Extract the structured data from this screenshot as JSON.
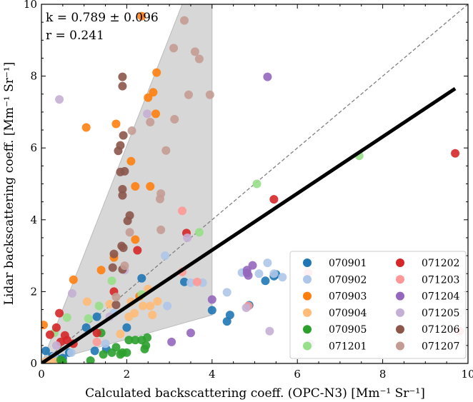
{
  "chart_data": {
    "type": "scatter",
    "xlabel": "Calculated backscattering coeff. (OPC-N3) [Mm⁻¹ Sr⁻¹]",
    "ylabel": "Lidar backscattering coeff. [Mm⁻¹ Sr⁻¹]",
    "xlim": [
      0,
      10
    ],
    "ylim": [
      0,
      10
    ],
    "xticks": [
      0,
      2,
      4,
      6,
      8,
      10
    ],
    "yticks": [
      0,
      2,
      4,
      6,
      8,
      10
    ],
    "grid": false,
    "legend_placement": "lower-right",
    "legend_columns": 2,
    "annotations": [
      "k = 0.789 ± 0.096",
      "r = 0.241"
    ],
    "fit_line": {
      "slope": 0.789,
      "intercept": 0,
      "x_range": [
        0,
        9.7
      ],
      "color": "#000000"
    },
    "identity_line": {
      "slope": 1,
      "intercept": 0,
      "style": "dashed",
      "color": "#808080"
    },
    "shaded_region": {
      "vertices": [
        [
          0,
          0
        ],
        [
          3.3,
          10
        ],
        [
          4,
          10
        ],
        [
          4,
          1.35
        ]
      ],
      "color": "#d3d3d3"
    },
    "series": [
      {
        "name": "070901",
        "color": "#1f77b4",
        "points": [
          [
            0.1,
            0.35
          ],
          [
            0.35,
            0.15
          ],
          [
            0.5,
            0.15
          ],
          [
            1.05,
            1.0
          ],
          [
            1.25,
            0.35
          ],
          [
            1.52,
            0.4
          ],
          [
            2.0,
            1.0
          ],
          [
            2.35,
            2.37
          ],
          [
            3.35,
            2.27
          ],
          [
            4.0,
            1.48
          ],
          [
            4.35,
            1.17
          ],
          [
            4.42,
            1.35
          ],
          [
            4.87,
            1.62
          ],
          [
            5.25,
            2.3
          ],
          [
            5.45,
            2.43
          ],
          [
            5.5,
            2.48
          ],
          [
            0.65,
            0.3
          ],
          [
            0.25,
            0.2
          ],
          [
            1.3,
            1.3
          ]
        ]
      },
      {
        "name": "070902",
        "color": "#aec7e8",
        "points": [
          [
            0.15,
            0.1
          ],
          [
            0.3,
            0.2
          ],
          [
            1.5,
            0.55
          ],
          [
            2.9,
            3.0
          ],
          [
            2.95,
            1.6
          ],
          [
            3.5,
            2.25
          ],
          [
            3.78,
            2.25
          ],
          [
            4.35,
            1.98
          ],
          [
            4.7,
            2.53
          ],
          [
            5.1,
            2.5
          ],
          [
            5.3,
            2.8
          ],
          [
            5.45,
            2.5
          ],
          [
            5.65,
            2.4
          ],
          [
            0.7,
            0.3
          ],
          [
            1.7,
            1.4
          ]
        ]
      },
      {
        "name": "070903",
        "color": "#ff7f0e",
        "points": [
          [
            0.05,
            1.07
          ],
          [
            0.75,
            2.33
          ],
          [
            1.05,
            6.57
          ],
          [
            1.75,
            6.67
          ],
          [
            2.35,
            9.67
          ],
          [
            2.5,
            7.4
          ],
          [
            2.62,
            7.55
          ],
          [
            2.7,
            8.1
          ],
          [
            2.68,
            6.95
          ],
          [
            2.1,
            5.63
          ],
          [
            2.2,
            4.93
          ],
          [
            2.55,
            4.93
          ],
          [
            2.2,
            3.45
          ],
          [
            1.4,
            2.6
          ],
          [
            2.3,
            1.87
          ],
          [
            1.7,
            2.95
          ]
        ]
      },
      {
        "name": "070904",
        "color": "#ffbb78",
        "points": [
          [
            0.1,
            0.05
          ],
          [
            0.2,
            0.1
          ],
          [
            0.35,
            0.05
          ],
          [
            1.07,
            1.72
          ],
          [
            1.6,
            1.65
          ],
          [
            2.1,
            1.72
          ],
          [
            2.5,
            2.07
          ],
          [
            2.55,
            1.6
          ],
          [
            2.72,
            1.73
          ],
          [
            2.38,
            1.6
          ],
          [
            2.6,
            1.35
          ],
          [
            2.18,
            1.4
          ],
          [
            1.85,
            0.82
          ],
          [
            2.05,
            1.3
          ]
        ]
      },
      {
        "name": "070905",
        "color": "#2ca02c",
        "points": [
          [
            1.15,
            0.08
          ],
          [
            1.45,
            0.25
          ],
          [
            1.65,
            0.3
          ],
          [
            1.75,
            0.45
          ],
          [
            1.9,
            0.3
          ],
          [
            1.85,
            0.25
          ],
          [
            2.0,
            0.3
          ],
          [
            2.05,
            0.65
          ],
          [
            2.2,
            0.65
          ],
          [
            2.35,
            0.65
          ],
          [
            2.42,
            0.4
          ],
          [
            2.48,
            0.72
          ],
          [
            2.45,
            0.5
          ],
          [
            1.4,
            0.85
          ],
          [
            0.45,
            0.1
          ],
          [
            0.5,
            0.05
          ]
        ]
      },
      {
        "name": "071201",
        "color": "#98df8a",
        "points": [
          [
            0.6,
            1.28
          ],
          [
            1.1,
            1.25
          ],
          [
            1.35,
            1.6
          ],
          [
            1.65,
            2.3
          ],
          [
            2.35,
            1.92
          ],
          [
            3.7,
            3.65
          ],
          [
            5.05,
            5.0
          ],
          [
            7.45,
            5.78
          ],
          [
            0.3,
            0.85
          ]
        ]
      },
      {
        "name": "071202",
        "color": "#d62728",
        "points": [
          [
            0.2,
            0.8
          ],
          [
            0.35,
            1.0
          ],
          [
            0.42,
            1.4
          ],
          [
            0.55,
            0.78
          ],
          [
            0.6,
            0.65
          ],
          [
            0.75,
            0.55
          ],
          [
            1.3,
            0.85
          ],
          [
            1.7,
            2.0
          ],
          [
            2.25,
            3.15
          ],
          [
            3.4,
            3.63
          ],
          [
            5.45,
            4.57
          ],
          [
            9.7,
            5.85
          ],
          [
            0.45,
            0.6
          ]
        ]
      },
      {
        "name": "071203",
        "color": "#ff9896",
        "points": [
          [
            1.3,
            0.6
          ],
          [
            3.3,
            4.25
          ],
          [
            3.3,
            2.55
          ],
          [
            3.65,
            2.27
          ],
          [
            4.85,
            1.6
          ],
          [
            6.25,
            2.52
          ],
          [
            9.8,
            0.9
          ]
        ]
      },
      {
        "name": "071204",
        "color": "#9467bd",
        "points": [
          [
            3.05,
            0.6
          ],
          [
            3.5,
            0.85
          ],
          [
            4.0,
            1.78
          ],
          [
            4.85,
            2.45
          ],
          [
            4.95,
            2.73
          ],
          [
            5.3,
            7.98
          ],
          [
            4.82,
            2.6
          ],
          [
            4.82,
            2.52
          ]
        ]
      },
      {
        "name": "071205",
        "color": "#c5b0d5",
        "points": [
          [
            0.42,
            7.35
          ],
          [
            0.72,
            1.95
          ],
          [
            1.6,
            1.3
          ],
          [
            1.95,
            2.6
          ],
          [
            2.48,
            6.95
          ],
          [
            3.42,
            3.5
          ],
          [
            4.8,
            1.55
          ],
          [
            5.35,
            0.9
          ],
          [
            6.3,
            0.55
          ],
          [
            0.35,
            0.5
          ]
        ]
      },
      {
        "name": "071206",
        "color": "#8c564b",
        "points": [
          [
            1.9,
            7.98
          ],
          [
            1.9,
            7.72
          ],
          [
            1.92,
            6.35
          ],
          [
            1.85,
            6.07
          ],
          [
            1.8,
            5.92
          ],
          [
            1.85,
            5.33
          ],
          [
            1.95,
            5.35
          ],
          [
            1.9,
            4.85
          ],
          [
            1.9,
            4.68
          ],
          [
            2.07,
            4.12
          ],
          [
            2.02,
            3.97
          ],
          [
            1.7,
            3.05
          ],
          [
            1.88,
            3.27
          ],
          [
            1.92,
            3.22
          ],
          [
            1.67,
            2.67
          ],
          [
            1.9,
            2.62
          ],
          [
            1.75,
            1.63
          ]
        ]
      },
      {
        "name": "071207",
        "color": "#c49c94",
        "points": [
          [
            3.35,
            9.55
          ],
          [
            3.1,
            8.78
          ],
          [
            3.6,
            8.68
          ],
          [
            3.7,
            8.48
          ],
          [
            3.45,
            7.48
          ],
          [
            3.95,
            7.48
          ],
          [
            2.55,
            6.72
          ],
          [
            2.12,
            6.48
          ],
          [
            3.12,
            6.8
          ],
          [
            2.92,
            5.93
          ],
          [
            2.8,
            4.73
          ],
          [
            2.78,
            4.58
          ],
          [
            2.07,
            3.65
          ],
          [
            2.8,
            3.72
          ],
          [
            1.95,
            2.72
          ],
          [
            1.75,
            1.85
          ]
        ]
      }
    ]
  }
}
